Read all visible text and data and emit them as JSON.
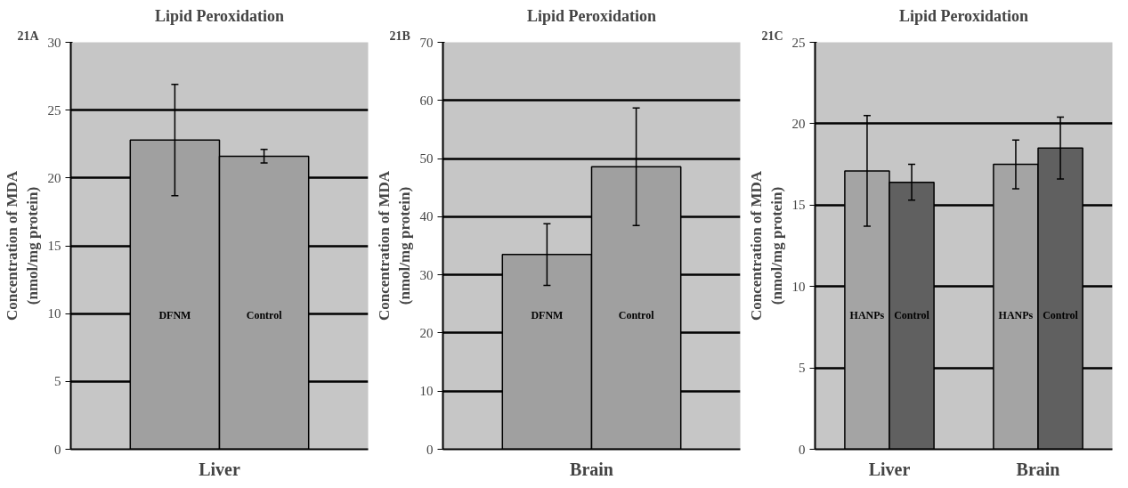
{
  "chart_data": [
    {
      "type": "bar",
      "title": "Lipid Peroxidation",
      "ylabel": "Concentration of MDA\n(nmol/mg protein)",
      "annotations": [
        "21A"
      ],
      "categories": [
        "Liver"
      ],
      "series": [
        {
          "name": "DFNM",
          "color": "#a0a0a0",
          "values": [
            22.8
          ],
          "errors": [
            4.1
          ]
        },
        {
          "name": "Control",
          "color": "#a0a0a0",
          "values": [
            21.6
          ],
          "errors": [
            0.5
          ]
        }
      ],
      "ylim": [
        0,
        30
      ],
      "yticks": [
        0,
        5,
        10,
        15,
        20,
        25,
        30
      ],
      "grid": "y",
      "legend": false
    },
    {
      "type": "bar",
      "title": "Lipid Peroxidation",
      "ylabel": "Concentration of MDA\n(nmol/mg protein)",
      "annotations": [
        "21B"
      ],
      "categories": [
        "Brain"
      ],
      "series": [
        {
          "name": "DFNM",
          "color": "#a0a0a0",
          "values": [
            33.5
          ],
          "errors": [
            5.3
          ]
        },
        {
          "name": "Control",
          "color": "#a0a0a0",
          "values": [
            48.6
          ],
          "errors": [
            10.1
          ]
        }
      ],
      "ylim": [
        0,
        70
      ],
      "yticks": [
        0,
        10,
        20,
        30,
        40,
        50,
        60,
        70
      ],
      "grid": "y",
      "legend": false
    },
    {
      "type": "bar",
      "title": "Lipid Peroxidation",
      "ylabel": "Concentration of MDA\n(nmol/mg protein)",
      "annotations": [
        "21C"
      ],
      "categories": [
        "Liver",
        "Brain"
      ],
      "series": [
        {
          "name": "HANPs",
          "color": "#a4a4a4",
          "values": [
            17.1,
            17.5
          ],
          "errors": [
            3.4,
            1.5
          ]
        },
        {
          "name": "Control",
          "color": "#606060",
          "values": [
            16.4,
            18.5
          ],
          "errors": [
            1.1,
            1.9
          ]
        }
      ],
      "ylim": [
        0,
        25
      ],
      "yticks": [
        0,
        5,
        10,
        15,
        20,
        25
      ],
      "grid": "y",
      "legend": false
    }
  ]
}
